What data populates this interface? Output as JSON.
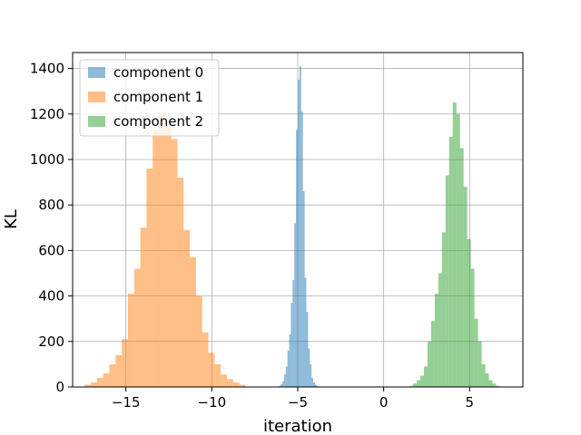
{
  "chart_data": {
    "type": "histogram",
    "title": "",
    "xlabel": "iteration",
    "ylabel": "KL",
    "xlim": [
      -18.1,
      8.1
    ],
    "ylim": [
      0,
      1470
    ],
    "xticks": [
      -15,
      -10,
      -5,
      0,
      5
    ],
    "xtick_labels": [
      "−15",
      "−10",
      "−5",
      "0",
      "5"
    ],
    "yticks": [
      0,
      200,
      400,
      600,
      800,
      1000,
      1200,
      1400
    ],
    "ytick_labels": [
      "0",
      "200",
      "400",
      "600",
      "800",
      "1000",
      "1200",
      "1400"
    ],
    "grid": true,
    "legend_position": "upper left",
    "series": [
      {
        "name": "component 0",
        "color": "#1f77b4",
        "alpha": 0.5,
        "bin_start": -6.2,
        "bin_width": 0.1,
        "counts": [
          2,
          5,
          12,
          25,
          55,
          90,
          160,
          230,
          370,
          470,
          720,
          1130,
          1350,
          1410,
          1210,
          860,
          480,
          330,
          170,
          100,
          40,
          20,
          10,
          5
        ]
      },
      {
        "name": "component 1",
        "color": "#ff7f0e",
        "alpha": 0.5,
        "bin_start": -17.4,
        "bin_width": 0.36,
        "counts": [
          10,
          20,
          40,
          60,
          100,
          140,
          210,
          410,
          520,
          700,
          960,
          1130,
          1210,
          1150,
          1090,
          920,
          690,
          570,
          400,
          240,
          150,
          100,
          55,
          35,
          20,
          10
        ]
      },
      {
        "name": "component 2",
        "color": "#2ca02c",
        "alpha": 0.5,
        "bin_start": 1.5,
        "bin_width": 0.21,
        "counts": [
          5,
          15,
          30,
          50,
          90,
          200,
          290,
          410,
          500,
          680,
          930,
          1100,
          1250,
          1200,
          1050,
          880,
          650,
          520,
          300,
          200,
          100,
          60,
          30,
          15,
          5
        ]
      }
    ]
  }
}
